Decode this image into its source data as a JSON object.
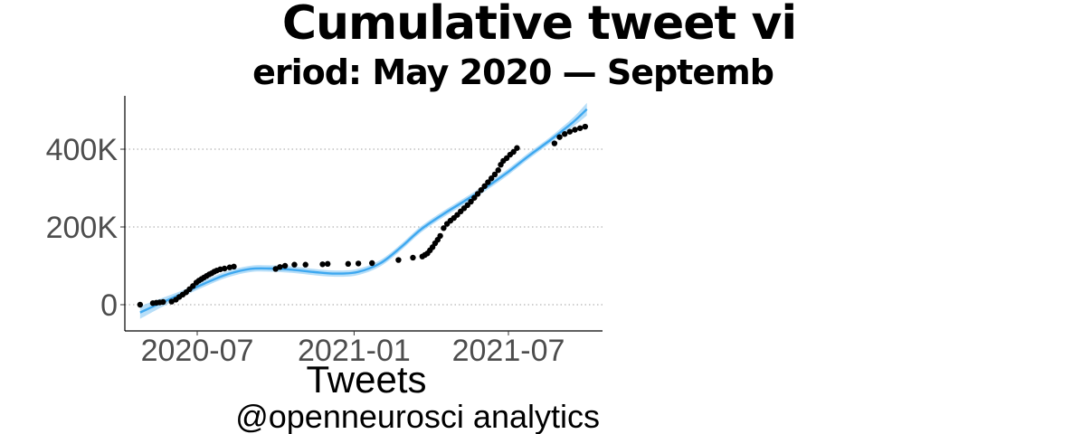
{
  "chart_data": {
    "type": "scatter",
    "title": "Cumulative tweet vi",
    "subtitle": "eriod: May 2020 — Septemb",
    "xlabel": "Tweets",
    "ylabel": "",
    "caption": "@openneurosci analytics",
    "x_ticks": [
      "2020-07",
      "2021-01",
      "2021-07"
    ],
    "y_ticks": [
      "0",
      "200K",
      "400K"
    ],
    "y_tick_values": [
      0,
      200000,
      400000
    ],
    "xlim": [
      "2020-04-15",
      "2021-10-15"
    ],
    "ylim": [
      -65000,
      545000
    ],
    "grid": "horizontal dotted",
    "series": [
      {
        "kind": "points",
        "color": "#000000",
        "x": [
          "2020-04-25",
          "2020-05-10",
          "2020-05-14",
          "2020-05-18",
          "2020-05-22",
          "2020-06-01",
          "2020-06-06",
          "2020-06-10",
          "2020-06-14",
          "2020-06-18",
          "2020-06-22",
          "2020-06-26",
          "2020-06-30",
          "2020-07-03",
          "2020-07-06",
          "2020-07-09",
          "2020-07-12",
          "2020-07-15",
          "2020-07-18",
          "2020-07-21",
          "2020-07-24",
          "2020-07-28",
          "2020-08-02",
          "2020-08-08",
          "2020-08-13",
          "2020-10-01",
          "2020-10-06",
          "2020-10-12",
          "2020-10-23",
          "2020-11-05",
          "2020-11-25",
          "2020-12-01",
          "2020-12-25",
          "2021-01-06",
          "2021-01-22",
          "2021-02-22",
          "2021-03-11",
          "2021-03-22",
          "2021-03-25",
          "2021-03-28",
          "2021-03-31",
          "2021-04-03",
          "2021-04-06",
          "2021-04-09",
          "2021-04-12",
          "2021-04-16",
          "2021-04-20",
          "2021-04-24",
          "2021-04-28",
          "2021-05-02",
          "2021-05-06",
          "2021-05-10",
          "2021-05-14",
          "2021-05-18",
          "2021-05-22",
          "2021-05-26",
          "2021-05-30",
          "2021-06-03",
          "2021-06-07",
          "2021-06-11",
          "2021-06-15",
          "2021-06-19",
          "2021-06-22",
          "2021-06-25",
          "2021-06-29",
          "2021-07-03",
          "2021-07-07",
          "2021-07-11",
          "2021-08-24",
          "2021-08-30",
          "2021-09-05",
          "2021-09-11",
          "2021-09-17",
          "2021-09-23",
          "2021-09-29"
        ],
        "y": [
          0,
          4000,
          5000,
          6000,
          7000,
          8000,
          13000,
          20000,
          26000,
          32000,
          40000,
          48000,
          57000,
          62000,
          66000,
          70000,
          74000,
          78000,
          81000,
          85000,
          88000,
          91000,
          93000,
          96000,
          98000,
          92000,
          97000,
          100000,
          103000,
          103000,
          104000,
          105000,
          105000,
          106000,
          107000,
          115000,
          121000,
          124000,
          128000,
          132000,
          140000,
          148000,
          158000,
          167000,
          177000,
          197000,
          208000,
          216000,
          223000,
          231000,
          240000,
          248000,
          256000,
          265000,
          275000,
          285000,
          295000,
          305000,
          315000,
          325000,
          335000,
          346000,
          360000,
          370000,
          377000,
          386000,
          393000,
          403000,
          415000,
          431000,
          439000,
          445000,
          450000,
          454000,
          458000
        ]
      },
      {
        "kind": "smooth-line",
        "color": "#3ea8f0",
        "x": [
          "2020-04-25",
          "2020-05-20",
          "2020-06-15",
          "2020-07-10",
          "2020-08-05",
          "2020-09-01",
          "2020-09-25",
          "2020-10-20",
          "2020-11-15",
          "2020-12-10",
          "2021-01-05",
          "2021-02-01",
          "2021-02-25",
          "2021-03-20",
          "2021-04-15",
          "2021-05-10",
          "2021-06-05",
          "2021-07-01",
          "2021-07-25",
          "2021-08-20",
          "2021-09-15",
          "2021-10-01"
        ],
        "y": [
          -20000,
          5000,
          30000,
          55000,
          78000,
          92000,
          93000,
          90000,
          84000,
          80000,
          84000,
          107000,
          148000,
          193000,
          232000,
          266000,
          302000,
          342000,
          383000,
          425000,
          470000,
          503000
        ]
      }
    ]
  }
}
